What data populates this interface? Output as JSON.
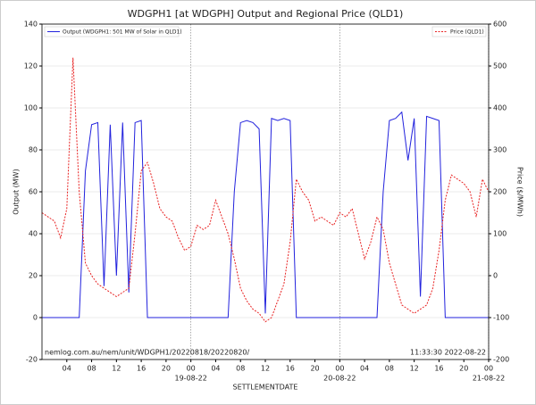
{
  "chart_data": {
    "type": "line",
    "title": "WDGPH1 [at WDGPH] Output and Regional Price (QLD1)",
    "xlabel": "SETTLEMENTDATE",
    "ylabel": "Output (MW)",
    "y2label": "Price ($/MWh)",
    "annotations": [
      "nemlog.com.au/nem/unit/WDGPH1/20220818/20220820/",
      "11:33:30 2022-08-22"
    ],
    "grid": true,
    "xlim": [
      "2022-08-18 00:00",
      "2022-08-21 00:00"
    ],
    "xticks": [
      {
        "value": "2022-08-18 04:00",
        "label": "04"
      },
      {
        "value": "2022-08-18 08:00",
        "label": "08"
      },
      {
        "value": "2022-08-18 12:00",
        "label": "12"
      },
      {
        "value": "2022-08-18 16:00",
        "label": "16"
      },
      {
        "value": "2022-08-18 20:00",
        "label": "20"
      },
      {
        "value": "2022-08-19 00:00",
        "label": "00"
      },
      {
        "value": "2022-08-19 04:00",
        "label": "04"
      },
      {
        "value": "2022-08-19 08:00",
        "label": "08"
      },
      {
        "value": "2022-08-19 12:00",
        "label": "12"
      },
      {
        "value": "2022-08-19 16:00",
        "label": "16"
      },
      {
        "value": "2022-08-19 20:00",
        "label": "20"
      },
      {
        "value": "2022-08-20 00:00",
        "label": "00"
      },
      {
        "value": "2022-08-20 04:00",
        "label": "04"
      },
      {
        "value": "2022-08-20 08:00",
        "label": "08"
      },
      {
        "value": "2022-08-20 12:00",
        "label": "12"
      },
      {
        "value": "2022-08-20 16:00",
        "label": "16"
      },
      {
        "value": "2022-08-20 20:00",
        "label": "20"
      },
      {
        "value": "2022-08-21 00:00",
        "label": "00"
      }
    ],
    "xdate_labels": [
      {
        "value": "2022-08-19 00:00",
        "label": "19-08-22"
      },
      {
        "value": "2022-08-20 00:00",
        "label": "20-08-22"
      },
      {
        "value": "2022-08-21 00:00",
        "label": "21-08-22"
      }
    ],
    "ylim": [
      -20,
      140
    ],
    "yticks": [
      -20,
      0,
      20,
      40,
      60,
      80,
      100,
      120,
      140
    ],
    "y2lim": [
      -200,
      600
    ],
    "y2ticks": [
      -200,
      -100,
      0,
      100,
      200,
      300,
      400,
      500,
      600
    ],
    "x": [
      "2022-08-18 00:00",
      "2022-08-18 01:00",
      "2022-08-18 02:00",
      "2022-08-18 03:00",
      "2022-08-18 04:00",
      "2022-08-18 05:00",
      "2022-08-18 06:00",
      "2022-08-18 07:00",
      "2022-08-18 08:00",
      "2022-08-18 09:00",
      "2022-08-18 10:00",
      "2022-08-18 11:00",
      "2022-08-18 12:00",
      "2022-08-18 13:00",
      "2022-08-18 14:00",
      "2022-08-18 15:00",
      "2022-08-18 16:00",
      "2022-08-18 17:00",
      "2022-08-18 18:00",
      "2022-08-18 19:00",
      "2022-08-18 20:00",
      "2022-08-18 21:00",
      "2022-08-18 22:00",
      "2022-08-18 23:00",
      "2022-08-19 00:00",
      "2022-08-19 01:00",
      "2022-08-19 02:00",
      "2022-08-19 03:00",
      "2022-08-19 04:00",
      "2022-08-19 05:00",
      "2022-08-19 06:00",
      "2022-08-19 07:00",
      "2022-08-19 08:00",
      "2022-08-19 09:00",
      "2022-08-19 10:00",
      "2022-08-19 11:00",
      "2022-08-19 12:00",
      "2022-08-19 13:00",
      "2022-08-19 14:00",
      "2022-08-19 15:00",
      "2022-08-19 16:00",
      "2022-08-19 17:00",
      "2022-08-19 18:00",
      "2022-08-19 19:00",
      "2022-08-19 20:00",
      "2022-08-19 21:00",
      "2022-08-19 22:00",
      "2022-08-19 23:00",
      "2022-08-20 00:00",
      "2022-08-20 01:00",
      "2022-08-20 02:00",
      "2022-08-20 03:00",
      "2022-08-20 04:00",
      "2022-08-20 05:00",
      "2022-08-20 06:00",
      "2022-08-20 07:00",
      "2022-08-20 08:00",
      "2022-08-20 09:00",
      "2022-08-20 10:00",
      "2022-08-20 11:00",
      "2022-08-20 12:00",
      "2022-08-20 13:00",
      "2022-08-20 14:00",
      "2022-08-20 15:00",
      "2022-08-20 16:00",
      "2022-08-20 17:00",
      "2022-08-20 18:00",
      "2022-08-20 19:00",
      "2022-08-20 20:00",
      "2022-08-20 21:00",
      "2022-08-20 22:00",
      "2022-08-20 23:00",
      "2022-08-21 00:00"
    ],
    "series": [
      {
        "name": "Output (WDGPH1: 501 MW of Solar in QLD1)",
        "color": "#2222dd",
        "dash": "solid",
        "values": [
          0,
          0,
          0,
          0,
          0,
          0,
          0,
          70,
          92,
          93,
          15,
          92,
          20,
          93,
          12,
          93,
          94,
          0,
          0,
          0,
          0,
          0,
          0,
          0,
          0,
          0,
          0,
          0,
          0,
          0,
          0,
          60,
          93,
          94,
          93,
          90,
          2,
          95,
          94,
          95,
          94,
          0,
          0,
          0,
          0,
          0,
          0,
          0,
          0,
          0,
          0,
          0,
          0,
          0,
          0,
          60,
          94,
          95,
          98,
          75,
          95,
          10,
          96,
          95,
          94,
          0,
          0,
          0,
          0,
          0,
          0,
          0,
          0
        ]
      },
      {
        "name": "Price (QLD1)",
        "color": "#e82222",
        "dash": "dotted",
        "axis": "y2",
        "values": [
          150,
          140,
          130,
          90,
          160,
          520,
          200,
          30,
          0,
          -20,
          -30,
          -40,
          -50,
          -40,
          -30,
          100,
          250,
          270,
          220,
          160,
          140,
          130,
          90,
          60,
          70,
          120,
          110,
          120,
          180,
          140,
          100,
          40,
          -30,
          -60,
          -80,
          -90,
          -110,
          -100,
          -60,
          -20,
          80,
          230,
          200,
          180,
          130,
          140,
          130,
          120,
          150,
          140,
          160,
          100,
          40,
          80,
          140,
          110,
          30,
          -20,
          -70,
          -80,
          -90,
          -80,
          -70,
          -30,
          60,
          180,
          240,
          230,
          220,
          200,
          140,
          230,
          200
        ]
      }
    ]
  }
}
